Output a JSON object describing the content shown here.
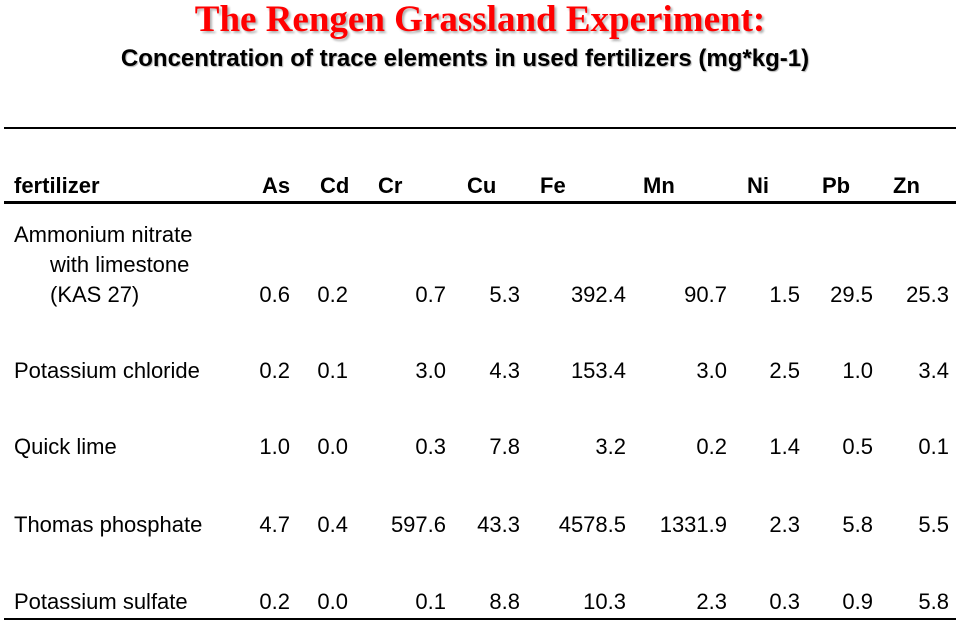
{
  "title": "The Rengen Grassland Experiment:",
  "subtitle": "Concentration of trace elements in used fertilizers (mg*kg-1)",
  "table": {
    "headers": [
      "fertilizer",
      "As",
      "Cd",
      "Cr",
      "Cu",
      "Fe",
      "Mn",
      "Ni",
      "Pb",
      "Zn"
    ],
    "rows": [
      {
        "name_lines": [
          "Ammonium nitrate",
          "with limestone",
          "(KAS 27)"
        ],
        "values": [
          "0.6",
          "0.2",
          "0.7",
          "5.3",
          "392.4",
          "90.7",
          "1.5",
          "29.5",
          "25.3"
        ]
      },
      {
        "name_lines": [
          "Potassium chloride"
        ],
        "values": [
          "0.2",
          "0.1",
          "3.0",
          "4.3",
          "153.4",
          "3.0",
          "2.5",
          "1.0",
          "3.4"
        ]
      },
      {
        "name_lines": [
          "Quick lime"
        ],
        "values": [
          "1.0",
          "0.0",
          "0.3",
          "7.8",
          "3.2",
          "0.2",
          "1.4",
          "0.5",
          "0.1"
        ]
      },
      {
        "name_lines": [
          "Thomas phosphate"
        ],
        "values": [
          "4.7",
          "0.4",
          "597.6",
          "43.3",
          "4578.5",
          "1331.9",
          "2.3",
          "5.8",
          "5.5"
        ]
      },
      {
        "name_lines": [
          "Potassium sulfate"
        ],
        "values": [
          "0.2",
          "0.0",
          "0.1",
          "8.8",
          "10.3",
          "2.3",
          "0.3",
          "0.9",
          "5.8"
        ]
      }
    ]
  },
  "colors": {
    "title": "#ff0000",
    "text": "#000000",
    "background": "#ffffff"
  }
}
